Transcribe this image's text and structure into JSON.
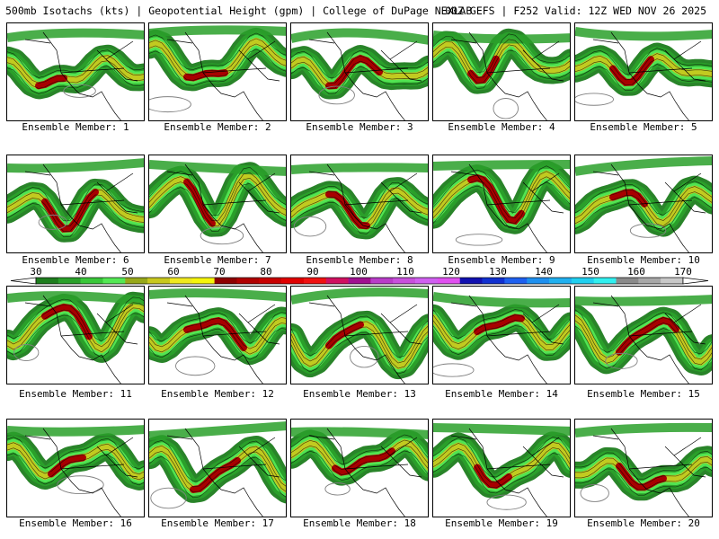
{
  "header": {
    "left": "500mb Isotachs (kts) | Geopotential Height (gpm) | College of DuPage NEXLAB",
    "right": "00Z GEFS | F252 Valid: 12Z WED NOV 26 2025"
  },
  "caption_prefix": "Ensemble Member: ",
  "members": [
    1,
    2,
    3,
    4,
    5,
    6,
    7,
    8,
    9,
    10,
    11,
    12,
    13,
    14,
    15,
    16,
    17,
    18,
    19,
    20
  ],
  "colorbar": {
    "labels": [
      "30",
      "40",
      "50",
      "60",
      "70",
      "80",
      "90",
      "100",
      "110",
      "120",
      "130",
      "140",
      "150",
      "160",
      "170"
    ],
    "label_positions_kts": [
      30,
      40,
      50,
      60,
      70,
      80,
      90,
      100,
      110,
      120,
      130,
      140,
      150,
      160,
      170
    ],
    "colors": [
      "#1e7d1e",
      "#2aa02a",
      "#39c739",
      "#54e854",
      "#97a81a",
      "#c8c81e",
      "#f0e91e",
      "#f5f50a",
      "#8e0000",
      "#b00000",
      "#c80000",
      "#e00000",
      "#f01010",
      "#d01060",
      "#a01090",
      "#b83cc8",
      "#c850dc",
      "#d060f0",
      "#e050f0",
      "#1010b0",
      "#1030d0",
      "#1e60f0",
      "#1e90f0",
      "#20b0f0",
      "#20d0f0",
      "#30f0f0",
      "#8a8a8a",
      "#a8a8a8",
      "#c8c8c8"
    ]
  },
  "colors": {
    "jet_green_dark": "#1e7d1e",
    "jet_green": "#2aa02a",
    "jet_green_light": "#54e854",
    "jet_yellow": "#c8c81e",
    "jet_red": "#a80000",
    "coast": "#000000",
    "height_contour": "#808080"
  }
}
